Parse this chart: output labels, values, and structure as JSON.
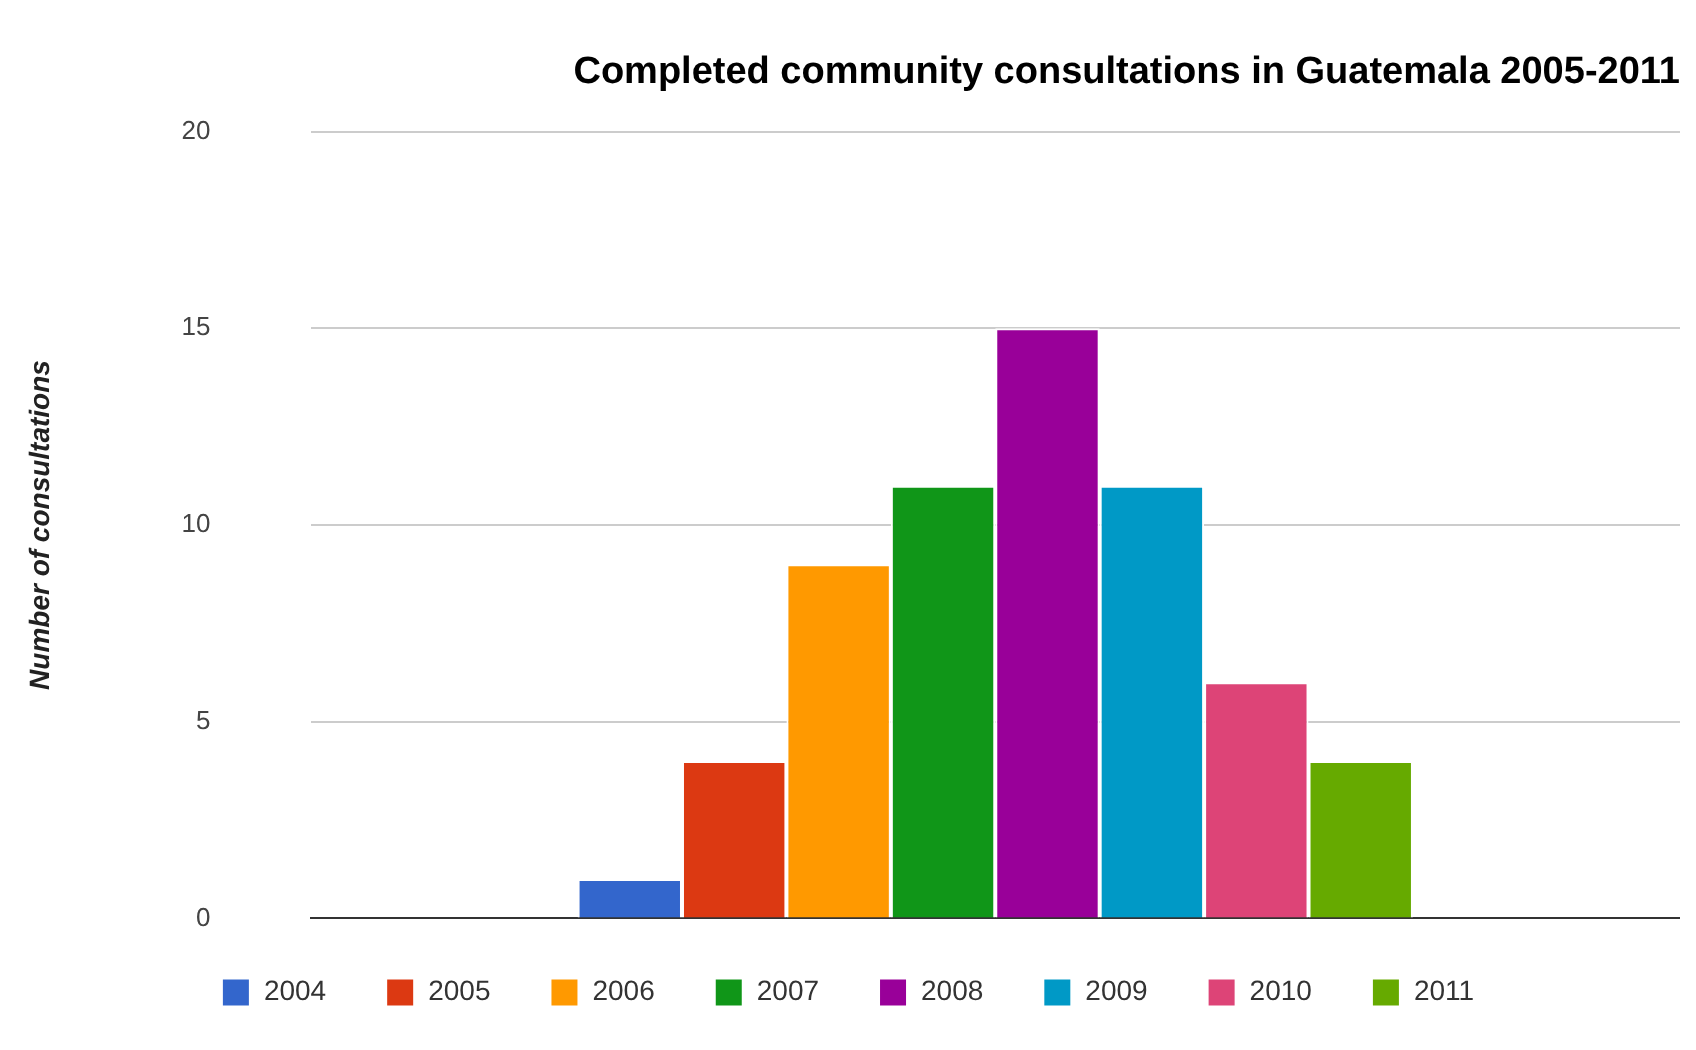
{
  "chart_data": {
    "type": "bar",
    "title": "Completed community consultations in Guatemala 2005-2011",
    "ylabel": "Number of consultations",
    "categories": [
      null
    ],
    "series": [
      {
        "name": "2004",
        "color": "#3366cc",
        "values": [
          1
        ]
      },
      {
        "name": "2005",
        "color": "#dc3912",
        "values": [
          4
        ]
      },
      {
        "name": "2006",
        "color": "#ff9900",
        "values": [
          9
        ]
      },
      {
        "name": "2007",
        "color": "#109618",
        "values": [
          11
        ]
      },
      {
        "name": "2008",
        "color": "#990099",
        "values": [
          15
        ]
      },
      {
        "name": "2009",
        "color": "#0099c6",
        "values": [
          11
        ]
      },
      {
        "name": "2010",
        "color": "#dd4477",
        "values": [
          6
        ]
      },
      {
        "name": "2011",
        "color": "#66aa00",
        "values": [
          4
        ]
      }
    ],
    "ylim": [
      0,
      20
    ],
    "yticks": [
      0,
      5,
      10,
      15,
      20
    ],
    "grid": "y",
    "legend": "bottom",
    "tick_labels": "y"
  }
}
